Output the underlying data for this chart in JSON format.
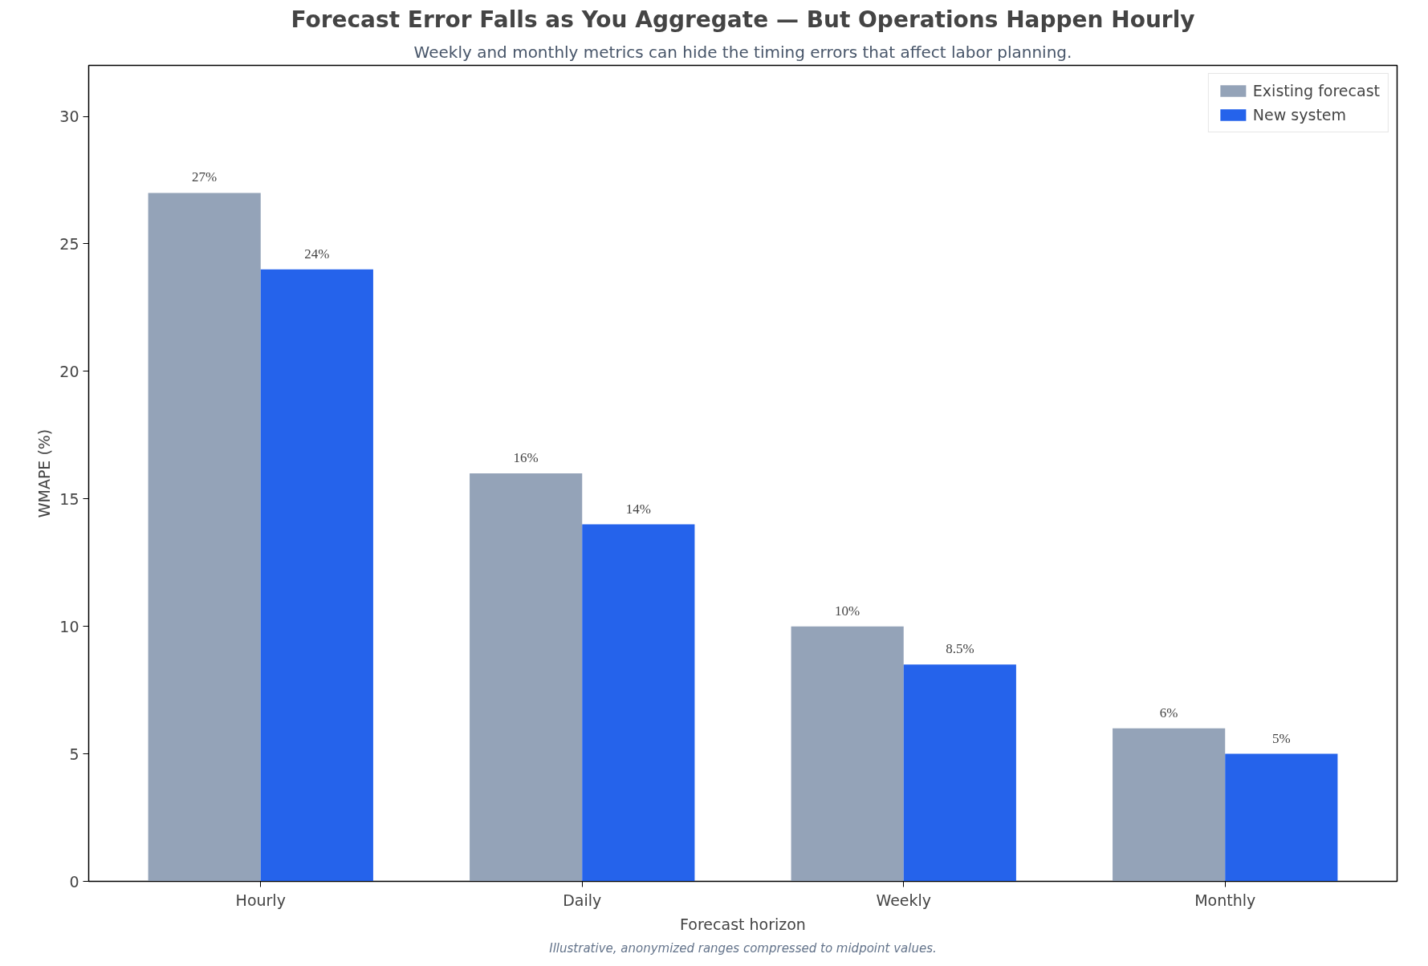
{
  "chart_data": {
    "type": "bar",
    "title": "Forecast Error Falls as You Aggregate — But Operations Happen Hourly",
    "subtitle": "Weekly and monthly metrics can hide the timing errors that affect labor planning.",
    "xlabel": "Forecast horizon",
    "ylabel": "WMAPE (%)",
    "categories": [
      "Hourly",
      "Daily",
      "Weekly",
      "Monthly"
    ],
    "series": [
      {
        "name": "Existing forecast",
        "color": "#94a3b8",
        "values": [
          27,
          16,
          10,
          6
        ],
        "value_labels": [
          "27%",
          "16%",
          "10%",
          "6%"
        ]
      },
      {
        "name": "New system",
        "color": "#2563eb",
        "values": [
          24,
          14,
          8.5,
          5
        ],
        "value_labels": [
          "24%",
          "14%",
          "8.5%",
          "5%"
        ]
      }
    ],
    "ylim": [
      0,
      32
    ],
    "yticks": [
      0,
      5,
      10,
      15,
      20,
      25,
      30
    ],
    "grid": false,
    "legend": "top right",
    "annotations": [
      "Illustrative, anonymized ranges compressed to midpoint values."
    ]
  }
}
